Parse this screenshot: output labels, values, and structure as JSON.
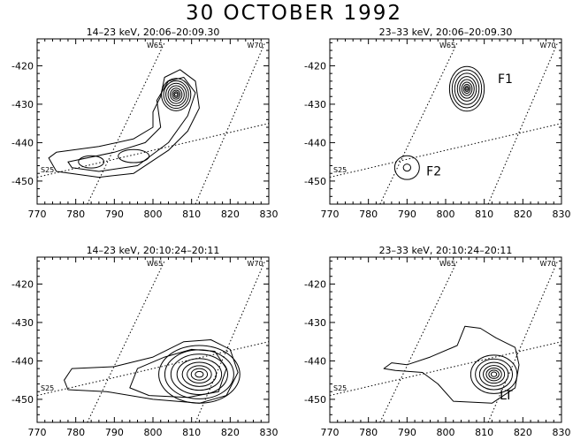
{
  "title": "30 OCTOBER 1992",
  "chart_data": [
    {
      "type": "contour",
      "title": "14–23 keV,  20:06–20:09.30",
      "xlim": [
        770,
        830
      ],
      "ylim": [
        -456,
        -413
      ],
      "xticks": [
        770,
        780,
        790,
        800,
        810,
        820,
        830
      ],
      "yticks": [
        -420,
        -430,
        -440,
        -450
      ],
      "grid_lines": [
        {
          "label": "W65",
          "points": [
            [
              783,
              -456
            ],
            [
              803,
              -414
            ]
          ]
        },
        {
          "label": "W70",
          "points": [
            [
              811,
              -456
            ],
            [
              829,
              -414
            ]
          ]
        },
        {
          "label": "S25",
          "points": [
            [
              770,
              -449
            ],
            [
              830,
              -435
            ]
          ]
        }
      ],
      "sources": [
        {
          "center": [
            806,
            -427.5
          ],
          "rx": 3.8,
          "ry": 4.2,
          "levels": [
            1.0,
            0.85,
            0.7,
            0.55,
            0.4,
            0.28,
            0.18,
            0.1
          ]
        },
        {
          "center": [
            784,
            -445
          ],
          "rx": 3.3,
          "ry": 1.6,
          "levels": [
            1.0
          ]
        },
        {
          "center": [
            795,
            -443.5
          ],
          "rx": 4.0,
          "ry": 1.7,
          "levels": [
            1.0
          ]
        }
      ],
      "envelopes": [
        [
          [
            773,
            -444
          ],
          [
            775,
            -442.5
          ],
          [
            786,
            -441
          ],
          [
            795,
            -439
          ],
          [
            800,
            -436
          ],
          [
            800,
            -432
          ],
          [
            802,
            -428
          ],
          [
            803,
            -423
          ],
          [
            807,
            -421
          ],
          [
            811,
            -424
          ],
          [
            812,
            -431
          ],
          [
            809,
            -437
          ],
          [
            804,
            -442
          ],
          [
            795,
            -448
          ],
          [
            786,
            -449
          ],
          [
            775,
            -447.5
          ]
        ],
        [
          [
            778,
            -445
          ],
          [
            790,
            -442.5
          ],
          [
            798,
            -440
          ],
          [
            802,
            -436
          ],
          [
            801,
            -429
          ],
          [
            804,
            -424
          ],
          [
            808,
            -423
          ],
          [
            811,
            -427
          ],
          [
            809,
            -433
          ],
          [
            804,
            -440
          ],
          [
            796,
            -446
          ],
          [
            786,
            -447.5
          ],
          [
            779,
            -446.5
          ]
        ]
      ],
      "annotations": []
    },
    {
      "type": "contour",
      "title": "23–33 keV,  20:06–20:09.30",
      "xlim": [
        770,
        830
      ],
      "ylim": [
        -456,
        -413
      ],
      "xticks": [
        770,
        780,
        790,
        800,
        810,
        820,
        830
      ],
      "yticks": [
        -420,
        -430,
        -440,
        -450
      ],
      "grid_lines": [
        {
          "label": "W65",
          "points": [
            [
              783,
              -456
            ],
            [
              803,
              -414
            ]
          ]
        },
        {
          "label": "W70",
          "points": [
            [
              811,
              -456
            ],
            [
              829,
              -414
            ]
          ]
        },
        {
          "label": "S25",
          "points": [
            [
              770,
              -449
            ],
            [
              830,
              -435
            ]
          ]
        }
      ],
      "sources": [
        {
          "center": [
            805.5,
            -426
          ],
          "rx": 4.5,
          "ry": 5.8,
          "levels": [
            1.0,
            0.85,
            0.7,
            0.55,
            0.42,
            0.3,
            0.2,
            0.12,
            0.06
          ]
        },
        {
          "center": [
            790,
            -446.5
          ],
          "rx": 3.2,
          "ry": 3.1,
          "levels": [
            1.0,
            0.3
          ]
        }
      ],
      "envelopes": [],
      "annotations": [
        {
          "text": "F1",
          "x": 813.5,
          "y": -424.5
        },
        {
          "text": "F2",
          "x": 795,
          "y": -448.5
        }
      ]
    },
    {
      "type": "contour",
      "title": "14–23 keV,  20:10:24–20:11",
      "xlim": [
        770,
        830
      ],
      "ylim": [
        -456,
        -413
      ],
      "xticks": [
        770,
        780,
        790,
        800,
        810,
        820,
        830
      ],
      "yticks": [
        -420,
        -430,
        -440,
        -450
      ],
      "grid_lines": [
        {
          "label": "W65",
          "points": [
            [
              783,
              -456
            ],
            [
              803,
              -414
            ]
          ]
        },
        {
          "label": "W70",
          "points": [
            [
              811,
              -456
            ],
            [
              829,
              -414
            ]
          ]
        },
        {
          "label": "S25",
          "points": [
            [
              770,
              -449
            ],
            [
              830,
              -435
            ]
          ]
        }
      ],
      "sources": [
        {
          "center": [
            812,
            -443.5
          ],
          "rx": 10.5,
          "ry": 7.5,
          "levels": [
            1.0,
            0.85,
            0.7,
            0.55,
            0.42,
            0.3,
            0.2,
            0.1
          ]
        }
      ],
      "envelopes": [
        [
          [
            777,
            -445
          ],
          [
            779,
            -442
          ],
          [
            790,
            -441.5
          ],
          [
            800,
            -439
          ],
          [
            808,
            -435
          ],
          [
            815,
            -434.5
          ],
          [
            820,
            -437
          ],
          [
            822,
            -443
          ],
          [
            819,
            -449
          ],
          [
            812,
            -451
          ],
          [
            800,
            -450
          ],
          [
            788,
            -448
          ],
          [
            778,
            -447.5
          ]
        ],
        [
          [
            794,
            -447
          ],
          [
            796,
            -442
          ],
          [
            803,
            -439
          ],
          [
            810,
            -437
          ],
          [
            816,
            -437.5
          ],
          [
            819,
            -442
          ],
          [
            817,
            -448
          ],
          [
            809,
            -449.5
          ],
          [
            799,
            -449
          ]
        ]
      ],
      "annotations": []
    },
    {
      "type": "contour",
      "title": "23–33 keV,  20:10:24–20:11",
      "xlim": [
        770,
        830
      ],
      "ylim": [
        -456,
        -413
      ],
      "xticks": [
        770,
        780,
        790,
        800,
        810,
        820,
        830
      ],
      "yticks": [
        -420,
        -430,
        -440,
        -450
      ],
      "grid_lines": [
        {
          "label": "W65",
          "points": [
            [
              783,
              -456
            ],
            [
              803,
              -414
            ]
          ]
        },
        {
          "label": "W70",
          "points": [
            [
              811,
              -456
            ],
            [
              829,
              -414
            ]
          ]
        },
        {
          "label": "S25",
          "points": [
            [
              770,
              -449
            ],
            [
              830,
              -435
            ]
          ]
        }
      ],
      "sources": [
        {
          "center": [
            812.5,
            -443.5
          ],
          "rx": 6.0,
          "ry": 5.0,
          "levels": [
            1.0,
            0.8,
            0.62,
            0.46,
            0.33,
            0.22,
            0.12
          ]
        }
      ],
      "envelopes": [
        [
          [
            784,
            -442
          ],
          [
            786,
            -440.5
          ],
          [
            790,
            -441
          ],
          [
            796,
            -439
          ],
          [
            803,
            -436
          ],
          [
            805,
            -431
          ],
          [
            809,
            -431.5
          ],
          [
            813,
            -434
          ],
          [
            818,
            -436.5
          ],
          [
            819,
            -441
          ],
          [
            818,
            -447
          ],
          [
            812,
            -451
          ],
          [
            802,
            -450.5
          ],
          [
            798,
            -446
          ],
          [
            794,
            -443
          ],
          [
            787,
            -442.5
          ]
        ]
      ],
      "annotations": [
        {
          "text": "LT",
          "x": 814,
          "y": -450
        }
      ]
    }
  ]
}
